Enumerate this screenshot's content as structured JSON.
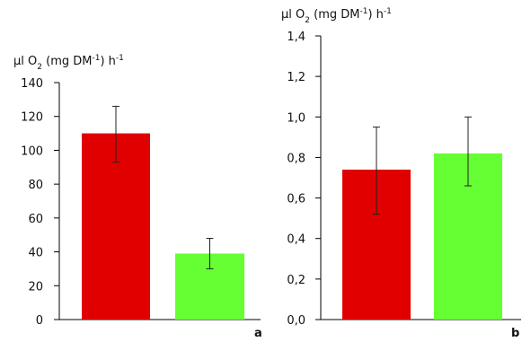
{
  "chart_data": [
    {
      "type": "bar",
      "panel": "a",
      "ylabel": {
        "main": "µl O",
        "sub": "2",
        "mid": " (mg DM",
        "sup1": "-1",
        "end": ") h",
        "sup2": "-1"
      },
      "ylim": [
        0,
        140
      ],
      "yticks": [
        "0",
        "20",
        "40",
        "60",
        "80",
        "100",
        "120",
        "140"
      ],
      "ytick_values": [
        0,
        20,
        40,
        60,
        80,
        100,
        120,
        140
      ],
      "values": [
        110,
        39
      ],
      "errors": [
        [
          93,
          126
        ],
        [
          30,
          48
        ]
      ],
      "colors": [
        "#e00000",
        "#66ff33"
      ],
      "grid": false
    },
    {
      "type": "bar",
      "panel": "b",
      "ylabel": {
        "main": "µl O",
        "sub": "2",
        "mid": " (mg DM",
        "sup1": "-1",
        "end": ") h",
        "sup2": "-1"
      },
      "ylim": [
        0,
        1.4
      ],
      "yticks": [
        "0,0",
        "0,2",
        "0,4",
        "0,6",
        "0,8",
        "1,0",
        "1,2",
        "1,4"
      ],
      "ytick_values": [
        0,
        0.2,
        0.4,
        0.6,
        0.8,
        1.0,
        1.2,
        1.4
      ],
      "values": [
        0.74,
        0.82
      ],
      "errors": [
        [
          0.52,
          0.95
        ],
        [
          0.66,
          1.0
        ]
      ],
      "colors": [
        "#e00000",
        "#66ff33"
      ],
      "grid": false
    }
  ]
}
